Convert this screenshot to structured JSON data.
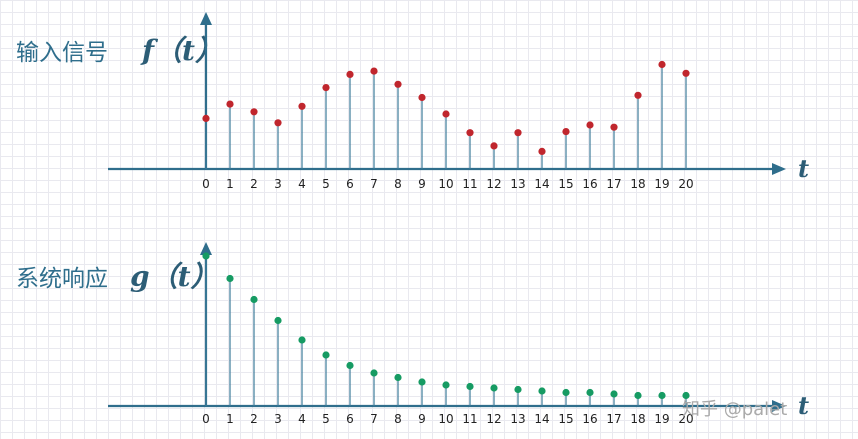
{
  "chart_data": [
    {
      "type": "scatter",
      "style": "stem",
      "title": "输入信号 f（t）",
      "title_text": "输入信号",
      "title_func": "f（t）",
      "xlabel": "t",
      "x": [
        0,
        1,
        2,
        3,
        4,
        5,
        6,
        7,
        8,
        9,
        10,
        11,
        12,
        13,
        14,
        15,
        16,
        17,
        18,
        19,
        20
      ],
      "series": [
        {
          "values": [
            0.46,
            0.59,
            0.52,
            0.42,
            0.57,
            0.74,
            0.86,
            0.89,
            0.77,
            0.65,
            0.5,
            0.33,
            0.21,
            0.33,
            0.16,
            0.34,
            0.4,
            0.38,
            0.67,
            0.95,
            0.87
          ]
        }
      ],
      "ylim": [
        0,
        1
      ],
      "xlim": [
        0,
        20
      ],
      "grid": true,
      "marker_color": "#c0262d"
    },
    {
      "type": "scatter",
      "style": "stem",
      "title": "系统响应 g（t）",
      "title_text": "系统响应",
      "title_func": "g（t）",
      "xlabel": "t",
      "x": [
        0,
        1,
        2,
        3,
        4,
        5,
        6,
        7,
        8,
        9,
        10,
        11,
        12,
        13,
        14,
        15,
        16,
        17,
        18,
        19,
        20
      ],
      "series": [
        {
          "values": [
            1.0,
            0.85,
            0.71,
            0.57,
            0.44,
            0.34,
            0.27,
            0.22,
            0.19,
            0.16,
            0.14,
            0.13,
            0.12,
            0.11,
            0.1,
            0.09,
            0.09,
            0.08,
            0.07,
            0.07,
            0.07
          ]
        }
      ],
      "ylim": [
        0,
        1
      ],
      "xlim": [
        0,
        20
      ],
      "grid": true,
      "marker_color": "#169b63"
    }
  ],
  "watermark": "知乎 @palet"
}
